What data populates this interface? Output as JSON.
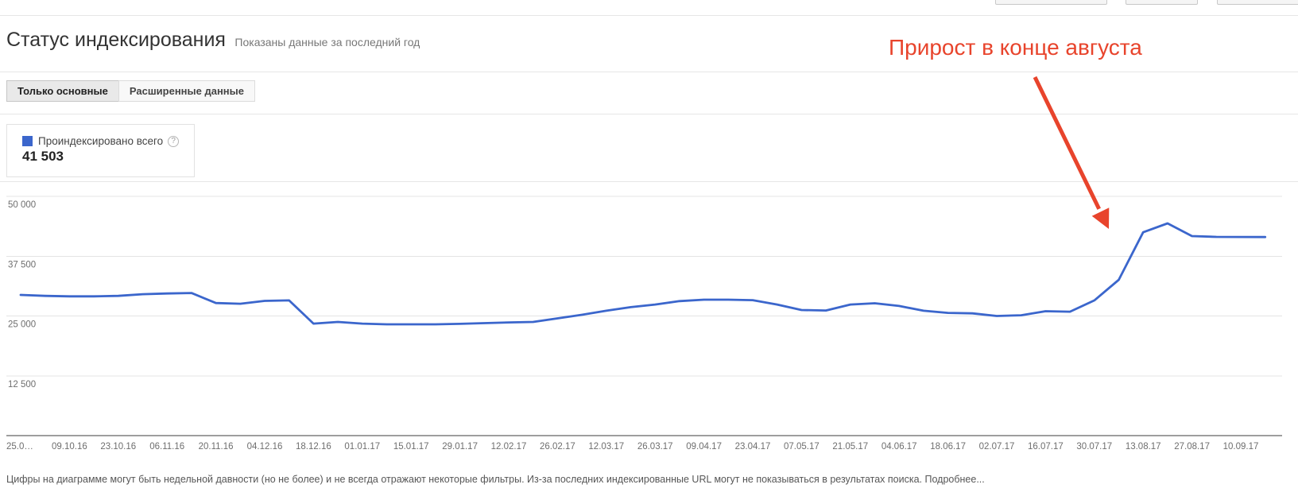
{
  "page": {
    "title": "Статус индексирования",
    "subtitle": "Показаны данные за последний год",
    "annotation": "Прирост в конце августа",
    "footer": "Цифры на диаграмме могут быть недельной давности (но не более) и не всегда отражают некоторые фильтры. Из-за последних индексированные URL могут не показываться в результатах поиска.",
    "learn_more": "Подробнее..."
  },
  "tabs": [
    {
      "label": "Только основные",
      "active": true
    },
    {
      "label": "Расширенные данные",
      "active": false
    }
  ],
  "legend": {
    "label": "Проиндексировано всего",
    "value": "41 503",
    "help_icon": "?"
  },
  "colors": {
    "series": "#3b66cc",
    "annotation": "#e8442c",
    "grid": "#e4e4e4",
    "axis": "#9e9e9e",
    "tick_text": "#6e6e6e"
  },
  "chart_data": {
    "type": "line",
    "title": "Статус индексирования — Проиндексировано всего",
    "ylim": [
      0,
      50000
    ],
    "y_ticks": [
      12500,
      25000,
      37500,
      50000
    ],
    "y_tick_labels": [
      "12 500",
      "25 000",
      "37 500",
      "50 000"
    ],
    "grid": "horizontal",
    "legend_position": "top-left",
    "x_tick_labels": [
      "25.0…",
      "09.10.16",
      "23.10.16",
      "06.11.16",
      "20.11.16",
      "04.12.16",
      "18.12.16",
      "01.01.17",
      "15.01.17",
      "29.01.17",
      "12.02.17",
      "26.02.17",
      "12.03.17",
      "26.03.17",
      "09.04.17",
      "23.04.17",
      "07.05.17",
      "21.05.17",
      "04.06.17",
      "18.06.17",
      "02.07.17",
      "16.07.17",
      "30.07.17",
      "13.08.17",
      "27.08.17",
      "10.09.17"
    ],
    "x_interval": "weekly points, labeled every 2 weeks",
    "series": [
      {
        "name": "Проиндексировано всего",
        "color": "#3b66cc",
        "current_value": 41503,
        "values": [
          29400,
          29200,
          29100,
          29100,
          29200,
          29550,
          29700,
          29800,
          27700,
          27550,
          28150,
          28250,
          23400,
          23750,
          23400,
          23250,
          23250,
          23250,
          23350,
          23500,
          23650,
          23750,
          24500,
          25250,
          26100,
          26850,
          27400,
          28100,
          28400,
          28400,
          28300,
          27400,
          26250,
          26150,
          27400,
          27650,
          27100,
          26100,
          25650,
          25550,
          25000,
          25150,
          26000,
          25900,
          28250,
          32550,
          42500,
          44350,
          41700,
          41520,
          41510,
          41503
        ]
      }
    ],
    "annotations": [
      {
        "text": "Прирост в конце августа",
        "target": "spike at end of August 2017",
        "color": "#e8442c"
      }
    ]
  }
}
